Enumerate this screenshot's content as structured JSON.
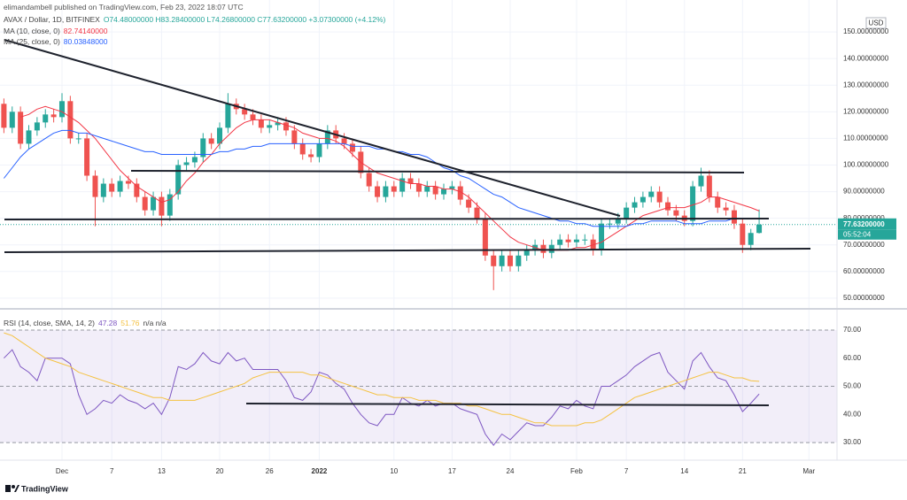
{
  "header": {
    "attribution": "elimandambell published on TradingView.com, Feb 23, 2022 18:07 UTC"
  },
  "footer": {
    "brand": "TradingView"
  },
  "chart_data": [
    {
      "type": "candlestick",
      "legend_label": "O74.48000000 H83.28400000 L74.26800000 C77.63200000 +3.07300000 (+4.12%)",
      "currency": "USD",
      "price_tag": {
        "value": 77.632,
        "label": "77.63200000"
      },
      "countdown": "05:52:04",
      "grid": true,
      "categories": [
        null,
        null,
        null,
        null,
        null,
        null,
        null,
        "Dec",
        null,
        null,
        null,
        null,
        null,
        "7",
        null,
        null,
        null,
        null,
        null,
        "13",
        null,
        null,
        null,
        null,
        null,
        null,
        "20",
        null,
        null,
        null,
        null,
        null,
        "26",
        null,
        null,
        null,
        null,
        null,
        "2022",
        null,
        null,
        null,
        null,
        null,
        null,
        null,
        null,
        "10",
        null,
        null,
        null,
        null,
        null,
        null,
        "17",
        null,
        null,
        null,
        null,
        null,
        null,
        "24",
        null,
        null,
        null,
        null,
        null,
        null,
        null,
        "Feb",
        null,
        null,
        null,
        null,
        null,
        "7",
        null,
        null,
        null,
        null,
        null,
        null,
        "14",
        null,
        null,
        null,
        null,
        null,
        null,
        "21",
        null,
        null,
        null,
        null,
        null,
        null,
        null,
        "Mar"
      ],
      "ylim": [
        47.3,
        162
      ],
      "yticks": [
        {
          "value": 50,
          "label": "50.00000000"
        },
        {
          "value": 60,
          "label": "60.00000000"
        },
        {
          "value": 70,
          "label": "70.00000000"
        },
        {
          "value": 80,
          "label": "80.00000000"
        },
        {
          "value": 90,
          "label": "90.00000000"
        },
        {
          "value": 100,
          "label": "100.00000000"
        },
        {
          "value": 110,
          "label": "110.00000000"
        },
        {
          "value": 120,
          "label": "120.00000000"
        },
        {
          "value": 130,
          "label": "130.00000000"
        },
        {
          "value": 140,
          "label": "140.00000000"
        },
        {
          "value": 150,
          "label": "150.00000000"
        }
      ],
      "series": [
        {
          "name": "AVAX / Dollar, 1D, BITFINEX",
          "up_color": "#26a69a",
          "down_color": "#ef5350",
          "open": [
            123,
            114,
            120,
            108,
            113,
            116,
            119,
            118,
            124,
            110,
            110,
            96,
            88,
            93,
            90,
            94,
            93,
            88,
            83,
            88,
            81,
            89,
            100,
            101,
            103,
            110,
            108,
            114,
            123,
            121,
            119,
            117,
            114,
            115,
            116,
            113,
            108,
            104,
            103,
            108,
            113,
            110,
            108,
            105,
            97,
            92,
            88,
            92,
            90,
            95,
            93,
            90,
            92,
            89,
            91,
            92,
            87,
            84,
            80,
            66,
            62,
            66,
            62,
            66,
            68,
            70,
            67,
            70,
            72,
            71,
            72,
            72,
            68,
            78,
            78,
            80,
            84,
            86,
            88,
            90,
            86,
            83,
            81,
            79,
            92,
            96,
            88,
            84,
            83,
            78,
            70,
            74.48,
            null,
            null,
            null,
            null,
            null,
            null
          ],
          "high": [
            125,
            122,
            122,
            115,
            118,
            121,
            121,
            127,
            126,
            112,
            112,
            98,
            95,
            95,
            96,
            96,
            95,
            90,
            90,
            90,
            91,
            102,
            103,
            105,
            112,
            112,
            116,
            127,
            125,
            123,
            121,
            119,
            117,
            118,
            118,
            115,
            110,
            106,
            110,
            115,
            115,
            112,
            110,
            107,
            99,
            94,
            94,
            94,
            97,
            97,
            95,
            94,
            94,
            93,
            94,
            94,
            89,
            86,
            82,
            68,
            68,
            68,
            68,
            70,
            72,
            72,
            72,
            74,
            74,
            74,
            74,
            74,
            80,
            80,
            82,
            86,
            88,
            90,
            92,
            92,
            88,
            85,
            83,
            94,
            99,
            98,
            90,
            86,
            85,
            80,
            76,
            83.284,
            null,
            null,
            null,
            null,
            null,
            null
          ],
          "low": [
            112,
            112,
            106,
            106,
            111,
            114,
            116,
            116,
            108,
            108,
            94,
            77,
            86,
            88,
            88,
            91,
            86,
            81,
            81,
            77,
            79,
            87,
            98,
            99,
            101,
            106,
            106,
            112,
            119,
            117,
            115,
            112,
            112,
            113,
            111,
            106,
            102,
            101,
            101,
            106,
            108,
            106,
            103,
            95,
            90,
            86,
            86,
            88,
            88,
            91,
            88,
            88,
            87,
            87,
            89,
            85,
            82,
            78,
            64,
            53,
            60,
            60,
            60,
            64,
            66,
            65,
            65,
            68,
            69,
            69,
            70,
            66,
            66,
            76,
            76,
            78,
            82,
            84,
            86,
            84,
            81,
            79,
            77,
            77,
            90,
            86,
            82,
            81,
            76,
            67,
            68,
            74.268,
            null,
            null,
            null,
            null,
            null,
            null
          ],
          "close": [
            114,
            120,
            108,
            113,
            116,
            119,
            118,
            124,
            110,
            110,
            96,
            88,
            93,
            90,
            94,
            93,
            88,
            83,
            88,
            81,
            89,
            100,
            101,
            103,
            110,
            108,
            114,
            123,
            121,
            119,
            117,
            114,
            115,
            116,
            113,
            108,
            104,
            103,
            108,
            113,
            110,
            108,
            105,
            97,
            92,
            88,
            92,
            90,
            95,
            93,
            90,
            92,
            89,
            91,
            92,
            87,
            84,
            80,
            66,
            62,
            66,
            62,
            66,
            68,
            70,
            67,
            70,
            72,
            71,
            72,
            72,
            68,
            78,
            78,
            80,
            84,
            86,
            88,
            90,
            86,
            83,
            81,
            79,
            92,
            96,
            88,
            84,
            83,
            78,
            70,
            74.48,
            77.632,
            null,
            null,
            null,
            null,
            null,
            null
          ]
        },
        {
          "name": "MA (10, close, 0)",
          "value_label": "82.74140000",
          "color": "#f23645",
          "values": [
            null,
            null,
            118,
            119,
            121,
            122,
            121,
            120,
            118,
            116,
            113,
            110,
            106,
            102,
            98,
            95,
            92,
            90,
            88,
            86,
            87,
            90,
            94,
            97,
            101,
            104,
            108,
            111,
            114,
            116,
            117,
            117,
            117,
            116,
            115,
            114,
            112,
            111,
            110,
            110,
            109,
            107,
            104,
            101,
            99,
            97,
            96,
            95,
            94,
            93,
            93,
            92,
            92,
            91,
            91,
            90,
            88,
            85,
            82,
            79,
            76,
            73,
            71,
            70,
            69,
            68,
            68,
            68,
            68,
            69,
            69,
            70,
            71,
            73,
            75,
            77,
            79,
            81,
            82,
            83,
            84,
            84,
            84,
            85,
            86,
            88,
            88,
            87,
            86,
            85,
            84,
            82.7414,
            null,
            null,
            null,
            null,
            null,
            null
          ]
        },
        {
          "name": "MA (25, close, 0)",
          "value_label": "80.03848000",
          "color": "#2962ff",
          "values": [
            95,
            99,
            103,
            106,
            108,
            110,
            112,
            113,
            113,
            112,
            112,
            111,
            110,
            109,
            108,
            107,
            106,
            105,
            105,
            104,
            104,
            104,
            104,
            104,
            104,
            104,
            105,
            105,
            106,
            106,
            107,
            107,
            108,
            108,
            108,
            108,
            108,
            108,
            108,
            108,
            108,
            108,
            107,
            107,
            107,
            106,
            106,
            105,
            105,
            104,
            104,
            103,
            101,
            99,
            98,
            96,
            95,
            93,
            91,
            89,
            88,
            86,
            84,
            83,
            82,
            81,
            80,
            79,
            79,
            78,
            78,
            77,
            77,
            77,
            77,
            77,
            78,
            78,
            79,
            79,
            79,
            79,
            78,
            78,
            78,
            79,
            79,
            79,
            80,
            80,
            80,
            80.03848,
            null,
            null,
            null,
            null,
            null,
            null
          ]
        }
      ]
    },
    {
      "type": "line",
      "title": "RSI (14, close, SMA, 14, 2)",
      "extra_label": "n/a n/a",
      "band_color": "#7e57c2",
      "ylim": [
        25.3,
        76.6
      ],
      "yticks": [
        {
          "value": 30,
          "label": "30.00"
        },
        {
          "value": 40,
          "label": "40.00"
        },
        {
          "value": 50,
          "label": "50.00"
        },
        {
          "value": 60,
          "label": "60.00"
        },
        {
          "value": 70,
          "label": "70.00"
        }
      ],
      "series": [
        {
          "color": "#7e57c2",
          "value_label": "47.28",
          "values": [
            60,
            63,
            57,
            55,
            52,
            60,
            60,
            60,
            58,
            47,
            40,
            42,
            45,
            44,
            47,
            45,
            44,
            42,
            44,
            40,
            46,
            57,
            56,
            58,
            62,
            59,
            58,
            62,
            59,
            60,
            56,
            56,
            56,
            56,
            52,
            46,
            45,
            48,
            55,
            54,
            51,
            49,
            44,
            40,
            37,
            36,
            40,
            40,
            46,
            44,
            43,
            45,
            43,
            44,
            44,
            42,
            41,
            40,
            33,
            29,
            33,
            31,
            34,
            37,
            36,
            36,
            39,
            43,
            42,
            45,
            43,
            42,
            50,
            50,
            52,
            54,
            57,
            59,
            61,
            62,
            55,
            52,
            49,
            59,
            62,
            57,
            53,
            52,
            47,
            41,
            44,
            47.28,
            null,
            null,
            null,
            null,
            null,
            null
          ]
        },
        {
          "color": "#f5c242",
          "value_label": "51.76",
          "values": [
            69,
            68,
            66,
            64,
            62,
            60,
            59,
            58,
            57,
            55,
            54,
            53,
            52,
            51,
            50,
            49,
            48,
            47,
            46,
            46,
            45,
            45,
            45,
            45,
            46,
            47,
            48,
            49,
            50,
            51,
            53,
            54,
            55,
            55,
            55,
            55,
            55,
            54,
            54,
            53,
            52,
            51,
            50,
            49,
            48,
            47,
            47,
            46,
            46,
            46,
            45,
            45,
            45,
            44,
            44,
            44,
            43,
            43,
            42,
            41,
            40,
            40,
            39,
            38,
            37,
            37,
            36,
            36,
            36,
            36,
            37,
            37,
            38,
            40,
            42,
            44,
            46,
            47,
            48,
            49,
            50,
            51,
            52,
            53,
            54,
            55,
            55,
            54,
            53,
            53,
            52,
            51.76,
            null,
            null,
            null,
            null,
            null,
            null
          ]
        }
      ]
    }
  ]
}
